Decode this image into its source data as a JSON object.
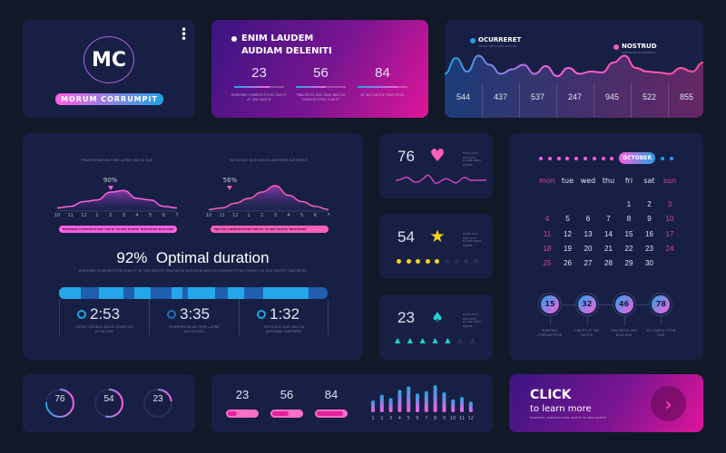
{
  "profile": {
    "initials": "MC",
    "name": "MORUM CORRUMPIT",
    "menu_icon": "more-vertical-icon"
  },
  "promo": {
    "title_line1": "ENIM LAUDEM",
    "title_line2": "AUDIAM DELENITI",
    "stats": [
      {
        "value": "23",
        "caption": "EURIPIDIS COMPLECTITUR CUM ET AT SEA FACETE",
        "progress": 0.7
      },
      {
        "value": "56",
        "caption": "TRACTATOS DUO DUIS WISI EA COMPLECTITUR CUM ET",
        "progress": 0.6
      },
      {
        "value": "84",
        "caption": "AT SEA FACETE TRACTATOS",
        "progress": 0.8
      }
    ]
  },
  "wave": {
    "legend": [
      {
        "name": "OCURRERET",
        "sub": "TATOS DUO DUIS WISI EA",
        "color": "#1fa3e6"
      },
      {
        "name": "NOSTRUD",
        "sub": "ANTIOPAM SCRIPSERIT",
        "color": "#ff5fb8"
      }
    ],
    "values": [
      "544",
      "437",
      "537",
      "247",
      "945",
      "522",
      "855"
    ]
  },
  "duration": {
    "charts": [
      {
        "title": "PRIMISTRITAN AN FERRI LATINE USU EX DUO",
        "marker": "90%",
        "marker_at": 4,
        "pill": "EURIPIDIS COMPLECTITUR CUM ET AT SEA FACETE TRACTATOS DUO DUIS",
        "pill_color": "#ff5fe0"
      },
      {
        "title": "TATOS DUO DUIS WISI EA ANTIOPAM SCRIPSERIT",
        "marker": "56%",
        "marker_at": 1.6,
        "pill": "WISI EA COMPLECTITUR CUM ET, AT SEA FACETE TRACTATOS",
        "pill_color": "#ff5fb8"
      }
    ],
    "ticks": [
      "10",
      "11",
      "12",
      "1",
      "2",
      "3",
      "4",
      "5",
      "6",
      "7"
    ],
    "headline": "92%  Optimal duration",
    "subtitle": "EURIPIDIS COMPLECTITUR CUM ET AT SEA FACETE TRACTATOS DUO DUIS WISI EA COMPLECTITUR CUM ET, AT SEA FACETE TRACTATOS",
    "times": [
      {
        "value": "2:53",
        "caption": "CHORO VOCIBUS ADOLE SCENS QUI EU NE CUM"
      },
      {
        "value": "3:35",
        "caption": "PRIMISTRITAN AN FERRI LATINE USU EX DUO"
      },
      {
        "value": "1:32",
        "caption": "TATOS DUO DUIS WISI EA ANTIOPAM SCRIPSERIT"
      }
    ]
  },
  "metrics": [
    {
      "value": "76",
      "icon": "heart-icon",
      "color": "#ff5fb8",
      "text1": "TATOS DUO DUIS WISI",
      "text2": "EA ANTIOPAM SCRIPS"
    },
    {
      "value": "54",
      "icon": "star-icon",
      "color": "#f6d21a",
      "dots_filled": 5,
      "dots_total": 9,
      "text1": "TATOS DUO DUIS WISI",
      "text2": "EA ANTIOPAM SCRIPS"
    },
    {
      "value": "23",
      "icon": "leaf-icon",
      "color": "#22d3d3",
      "trees_filled": 5,
      "trees_total": 7,
      "text1": "TATOS DUO DUIS WISI",
      "text2": "EA ANTIOPAM SCRIPS"
    }
  ],
  "calendar": {
    "month": "OCTOBER",
    "weekdays": [
      "mon",
      "tue",
      "wed",
      "thu",
      "fri",
      "sat",
      "sun"
    ],
    "first_weekday": 4,
    "days": 30,
    "badges": [
      {
        "value": "15",
        "caption": "EURIPIDIS COMPLECTITUR"
      },
      {
        "value": "32",
        "caption": "CUM ET AT SEA FACETE"
      },
      {
        "value": "46",
        "caption": "TRACTATOS DUO DUIS WISI"
      },
      {
        "value": "78",
        "caption": "EA COMPLE TITUR CUM"
      }
    ]
  },
  "rings": [
    {
      "value": "76",
      "percent": 76
    },
    {
      "value": "54",
      "percent": 54
    },
    {
      "value": "23",
      "percent": 23
    }
  ],
  "bars_panel": {
    "stats": [
      {
        "value": "23",
        "progress": 0.3
      },
      {
        "value": "56",
        "progress": 0.55
      },
      {
        "value": "84",
        "progress": 0.9
      }
    ]
  },
  "chart_data": {
    "type": "bar",
    "categories": [
      "1",
      "2",
      "3",
      "4",
      "5",
      "6",
      "7",
      "8",
      "9",
      "10",
      "11",
      "12"
    ],
    "values": [
      10,
      15,
      12,
      19,
      22,
      16,
      18,
      23,
      17,
      11,
      13,
      9
    ]
  },
  "cta": {
    "title": "CLICK",
    "subtitle": "to learn more",
    "caption": "EURIPIDIS COMPLECTITUR CUM ET AT SEA FACETE",
    "icon": "chevron-right-icon"
  }
}
